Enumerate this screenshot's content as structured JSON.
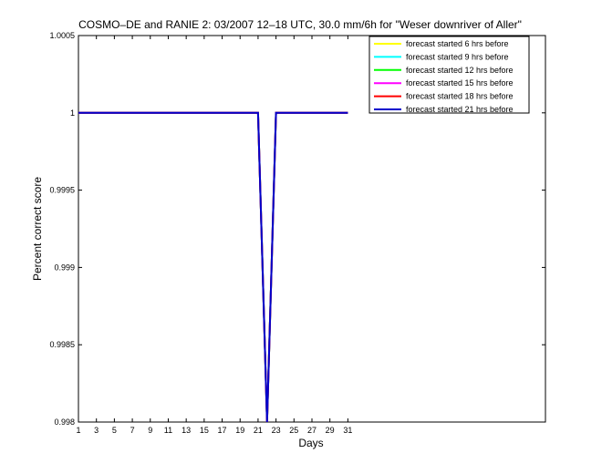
{
  "chart_data": {
    "type": "line",
    "title": "COSMO–DE and RANIE 2: 03/2007 12–18 UTC, 30.0 mm/6h for \"Weser downriver of Aller\"",
    "xlabel": "Days",
    "ylabel": "Percent correct score",
    "xlim": [
      1,
      53
    ],
    "ylim": [
      0.998,
      1.0005
    ],
    "xticks": [
      1,
      3,
      5,
      7,
      9,
      11,
      13,
      15,
      17,
      19,
      21,
      23,
      25,
      27,
      29,
      31
    ],
    "xtick_labels": [
      "1",
      "3",
      "5",
      "7",
      "9",
      "11",
      "13",
      "15",
      "17",
      "19",
      "21",
      "23",
      "25",
      "27",
      "29",
      "31"
    ],
    "yticks": [
      0.998,
      0.9985,
      0.999,
      0.9995,
      1,
      1.0005
    ],
    "ytick_labels": [
      "0.998",
      "0.9985",
      "0.999",
      "0.9995",
      "1",
      "1.0005"
    ],
    "grid": false,
    "legend_position": "top-right",
    "x": [
      1,
      2,
      3,
      4,
      5,
      6,
      7,
      8,
      9,
      10,
      11,
      12,
      13,
      14,
      15,
      16,
      17,
      18,
      19,
      20,
      21,
      22,
      23,
      24,
      25,
      26,
      27,
      28,
      29,
      30,
      31
    ],
    "series": [
      {
        "name": "forecast started 6 hrs before",
        "color": "#ffff00",
        "values": [
          1,
          1,
          1,
          1,
          1,
          1,
          1,
          1,
          1,
          1,
          1,
          1,
          1,
          1,
          1,
          1,
          1,
          1,
          1,
          1,
          1,
          0.998,
          1,
          1,
          1,
          1,
          1,
          1,
          1,
          1,
          1
        ]
      },
      {
        "name": "forecast started 9 hrs before",
        "color": "#00ffff",
        "values": [
          1,
          1,
          1,
          1,
          1,
          1,
          1,
          1,
          1,
          1,
          1,
          1,
          1,
          1,
          1,
          1,
          1,
          1,
          1,
          1,
          1,
          0.998,
          1,
          1,
          1,
          1,
          1,
          1,
          1,
          1,
          1
        ]
      },
      {
        "name": "forecast started 12 hrs before",
        "color": "#00ff00",
        "values": [
          1,
          1,
          1,
          1,
          1,
          1,
          1,
          1,
          1,
          1,
          1,
          1,
          1,
          1,
          1,
          1,
          1,
          1,
          1,
          1,
          1,
          0.998,
          1,
          1,
          1,
          1,
          1,
          1,
          1,
          1,
          1
        ]
      },
      {
        "name": "forecast started 15 hrs before",
        "color": "#ff00ff",
        "values": [
          1,
          1,
          1,
          1,
          1,
          1,
          1,
          1,
          1,
          1,
          1,
          1,
          1,
          1,
          1,
          1,
          1,
          1,
          1,
          1,
          1,
          0.998,
          1,
          1,
          1,
          1,
          1,
          1,
          1,
          1,
          1
        ]
      },
      {
        "name": "forecast started 18 hrs before",
        "color": "#ff0000",
        "values": [
          1,
          1,
          1,
          1,
          1,
          1,
          1,
          1,
          1,
          1,
          1,
          1,
          1,
          1,
          1,
          1,
          1,
          1,
          1,
          1,
          1,
          0.998,
          1,
          1,
          1,
          1,
          1,
          1,
          1,
          1,
          1
        ]
      },
      {
        "name": "forecast started 21 hrs before",
        "color": "#0000cc",
        "values": [
          1,
          1,
          1,
          1,
          1,
          1,
          1,
          1,
          1,
          1,
          1,
          1,
          1,
          1,
          1,
          1,
          1,
          1,
          1,
          1,
          1,
          0.998,
          1,
          1,
          1,
          1,
          1,
          1,
          1,
          1,
          1
        ]
      }
    ]
  }
}
